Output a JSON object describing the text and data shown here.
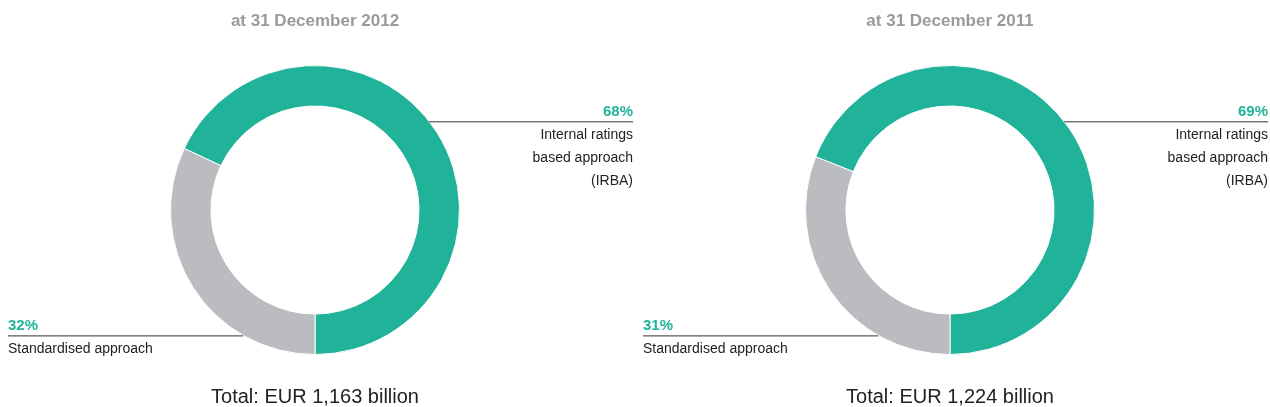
{
  "chart_data": [
    {
      "type": "donut",
      "title": "at 31 December 2012",
      "categories": [
        "Internal ratings based approach (IRBA)",
        "Standardised approach"
      ],
      "values": [
        68,
        32
      ],
      "value_labels": [
        "68%",
        "32%"
      ],
      "colors": [
        "#20b39a",
        "#bbbcbf"
      ],
      "annotations": [
        "Total: EUR 1,163 billion"
      ]
    },
    {
      "type": "donut",
      "title": "at 31 December 2011",
      "categories": [
        "Internal ratings based approach (IRBA)",
        "Standardised approach"
      ],
      "values": [
        69,
        31
      ],
      "value_labels": [
        "69%",
        "31%"
      ],
      "colors": [
        "#20b39a",
        "#bbbcbf"
      ],
      "annotations": [
        "Total: EUR 1,224 billion"
      ]
    }
  ]
}
